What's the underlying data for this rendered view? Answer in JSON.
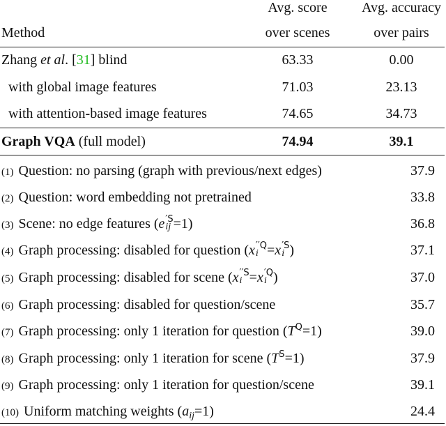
{
  "table": {
    "header": {
      "method": "Method",
      "score": [
        "Avg. score",
        "over scenes"
      ],
      "accuracy": [
        "Avg. accuracy",
        "over pairs"
      ]
    },
    "baselines": [
      {
        "method": [
          "Zhang ",
          "et al",
          ". [",
          "31",
          "] blind"
        ],
        "score": "63.33",
        "accuracy": "0.00"
      },
      {
        "method": [
          "with global image features"
        ],
        "score": "71.03",
        "accuracy": "23.13"
      },
      {
        "method": [
          "with attention-based image features"
        ],
        "score": "74.65",
        "accuracy": "34.73"
      }
    ],
    "full": {
      "method": "Graph VQA",
      "note": "(full model)",
      "score": "74.94",
      "accuracy": "39.1"
    },
    "ablations": [
      {
        "num": "(1)",
        "text": [
          "Question: no parsing (graph with previous/next edges)"
        ],
        "accuracy": "37.9"
      },
      {
        "num": "(2)",
        "text": [
          "Question: word embedding not pretrained"
        ],
        "accuracy": "33.8"
      },
      {
        "num": "(3)",
        "text": [
          "Scene: no edge features (",
          "e",
          "′S",
          "ij",
          "=1)"
        ],
        "accuracy": "36.8"
      },
      {
        "num": "(4)",
        "text": [
          "Graph processing: disabled for question (",
          "x",
          "′′Q",
          "i",
          "=",
          "x",
          "′S",
          "i",
          ")"
        ],
        "accuracy": "37.1"
      },
      {
        "num": "(5)",
        "text": [
          "Graph processing: disabled for scene (",
          "x",
          "′′S",
          "i",
          "=",
          "x",
          "′Q",
          "i",
          ")"
        ],
        "accuracy": "37.0"
      },
      {
        "num": "(6)",
        "text": [
          "Graph processing: disabled for question/scene"
        ],
        "accuracy": "35.7"
      },
      {
        "num": "(7)",
        "text": [
          "Graph processing: only 1 iteration for question (",
          "T",
          "Q",
          "=1)"
        ],
        "accuracy": "39.0"
      },
      {
        "num": "(8)",
        "text": [
          "Graph processing: only 1 iteration for scene (",
          "T",
          "S",
          "=1)"
        ],
        "accuracy": "37.9"
      },
      {
        "num": "(9)",
        "text": [
          "Graph processing: only 1 iteration for question/scene"
        ],
        "accuracy": "39.1"
      },
      {
        "num": "(10)",
        "text": [
          "Uniform matching weights (",
          "a",
          "ij",
          "=1)"
        ],
        "accuracy": "24.4"
      }
    ]
  }
}
